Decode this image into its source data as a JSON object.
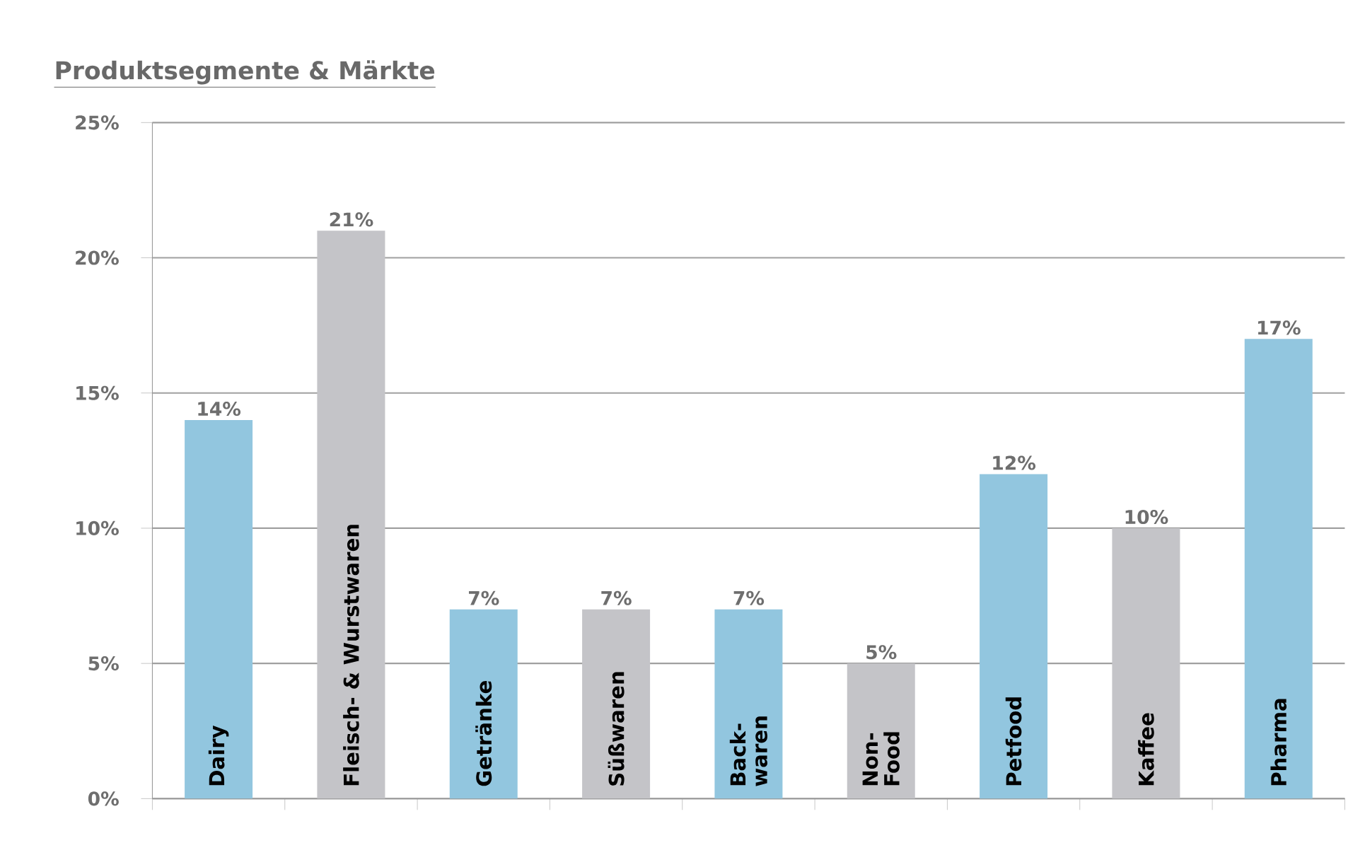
{
  "chart_data": {
    "type": "bar",
    "title": "Produktsegmente & Märkte",
    "categories": [
      "Dairy",
      "Fleisch- & Wurstwaren",
      "Getränke",
      "Süßwaren",
      "Back-waren",
      "Non-Food",
      "Petfood",
      "Kaffee",
      "Pharma"
    ],
    "values": [
      14,
      21,
      7,
      7,
      7,
      5,
      12,
      10,
      17
    ],
    "value_labels": [
      "14%",
      "21%",
      "7%",
      "7%",
      "7%",
      "5%",
      "12%",
      "10%",
      "17%"
    ],
    "colors": [
      "#92c6df",
      "#c4c4c8",
      "#92c6df",
      "#c4c4c8",
      "#92c6df",
      "#c4c4c8",
      "#92c6df",
      "#c4c4c8",
      "#92c6df"
    ],
    "ylim": [
      0,
      25
    ],
    "yticks": [
      {
        "value": 0,
        "label": "0%"
      },
      {
        "value": 5,
        "label": "5%"
      },
      {
        "value": 10,
        "label": "10%"
      },
      {
        "value": 15,
        "label": "15%"
      },
      {
        "value": 20,
        "label": "20%"
      },
      {
        "value": 25,
        "label": "25%"
      }
    ],
    "grid": "y"
  }
}
